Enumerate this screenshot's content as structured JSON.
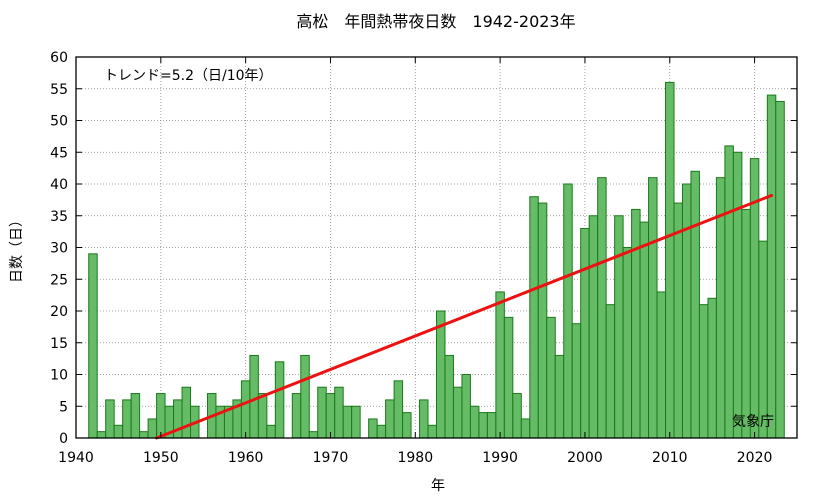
{
  "chart_data": {
    "type": "bar",
    "title": "高松　年間熱帯夜日数　1942-2023年",
    "xlabel": "年",
    "ylabel": "日数（日）",
    "trend_label": "トレンド=5.2（日/10年）",
    "source": "気象庁",
    "xlim": [
      1940,
      2025
    ],
    "ylim": [
      0,
      60
    ],
    "x_ticks": [
      1940,
      1950,
      1960,
      1970,
      1980,
      1990,
      2000,
      2010,
      2020
    ],
    "y_ticks": [
      0,
      5,
      10,
      15,
      20,
      25,
      30,
      35,
      40,
      45,
      50,
      55,
      60
    ],
    "grid": true,
    "bar_color": "#66bb66",
    "bar_edge_color": "#1a7a1a",
    "trend_color": "#ee1111",
    "trend": {
      "x": [
        1949.5,
        2022
      ],
      "y": [
        0,
        38.2
      ]
    },
    "x": [
      1942,
      1943,
      1944,
      1945,
      1946,
      1947,
      1948,
      1949,
      1950,
      1951,
      1952,
      1953,
      1954,
      1955,
      1956,
      1957,
      1958,
      1959,
      1960,
      1961,
      1962,
      1963,
      1964,
      1965,
      1966,
      1967,
      1968,
      1969,
      1970,
      1971,
      1972,
      1973,
      1974,
      1975,
      1976,
      1977,
      1978,
      1979,
      1980,
      1981,
      1982,
      1983,
      1984,
      1985,
      1986,
      1987,
      1988,
      1989,
      1990,
      1991,
      1992,
      1993,
      1994,
      1995,
      1996,
      1997,
      1998,
      1999,
      2000,
      2001,
      2002,
      2003,
      2004,
      2005,
      2006,
      2007,
      2008,
      2009,
      2010,
      2011,
      2012,
      2013,
      2014,
      2015,
      2016,
      2017,
      2018,
      2019,
      2020,
      2021,
      2022,
      2023
    ],
    "values": [
      29,
      1,
      6,
      2,
      6,
      7,
      1,
      3,
      7,
      5,
      6,
      8,
      5,
      0,
      7,
      5,
      5,
      6,
      9,
      13,
      7,
      2,
      12,
      0,
      7,
      13,
      1,
      8,
      7,
      8,
      5,
      5,
      0,
      3,
      2,
      6,
      9,
      4,
      0,
      6,
      2,
      20,
      13,
      8,
      10,
      5,
      4,
      4,
      23,
      19,
      7,
      3,
      38,
      37,
      19,
      13,
      40,
      18,
      33,
      35,
      41,
      21,
      35,
      30,
      36,
      34,
      41,
      23,
      56,
      37,
      40,
      42,
      21,
      22,
      41,
      46,
      45,
      36,
      44,
      31,
      54,
      53
    ]
  }
}
